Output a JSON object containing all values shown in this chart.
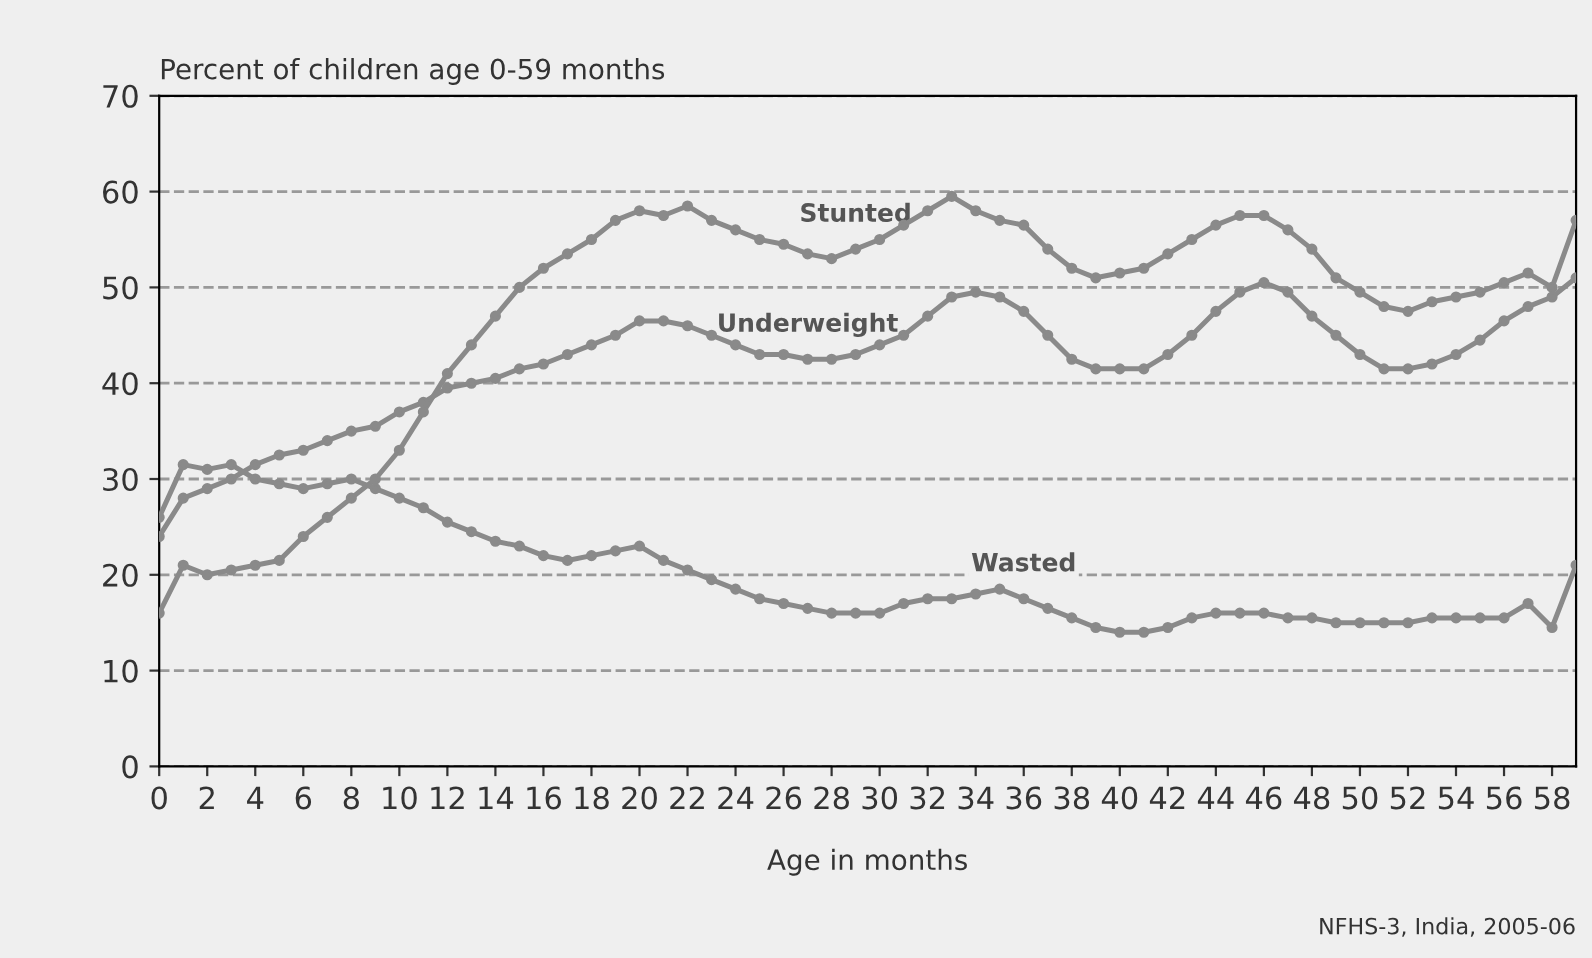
{
  "chart_data": {
    "type": "line",
    "title": "Percent of children age 0-59 months",
    "xlabel": "Age in months",
    "annotations": [
      "NFHS-3, India, 2005-06"
    ],
    "x": [
      0,
      1,
      2,
      3,
      4,
      5,
      6,
      7,
      8,
      9,
      10,
      11,
      12,
      13,
      14,
      15,
      16,
      17,
      18,
      19,
      20,
      21,
      22,
      23,
      24,
      25,
      26,
      27,
      28,
      29,
      30,
      31,
      32,
      33,
      34,
      35,
      36,
      37,
      38,
      39,
      40,
      41,
      42,
      43,
      44,
      45,
      46,
      47,
      48,
      49,
      50,
      51,
      52,
      53,
      54,
      55,
      56,
      57,
      58,
      59
    ],
    "series": [
      {
        "name": "Stunted",
        "color": "#8a8a8a",
        "values": [
          16,
          21,
          20,
          20.5,
          21,
          21.5,
          24,
          26,
          28,
          30,
          33,
          37,
          41,
          44,
          47,
          50,
          52,
          53.5,
          55,
          57,
          58,
          57.5,
          58.5,
          57,
          56,
          55,
          54.5,
          53.5,
          53,
          54,
          55,
          56.5,
          58,
          59.5,
          58,
          57,
          56.5,
          54,
          52,
          51,
          51.5,
          52,
          53.5,
          55,
          56.5,
          57.5,
          57.5,
          56,
          54,
          51,
          49.5,
          48,
          47.5,
          48.5,
          49,
          49.5,
          50.5,
          51.5,
          50,
          57
        ]
      },
      {
        "name": "Underweight",
        "color": "#8a8a8a",
        "values": [
          24,
          28,
          29,
          30,
          31.5,
          32.5,
          33,
          34,
          35,
          35.5,
          37,
          38,
          39.5,
          40,
          40.5,
          41.5,
          42,
          43,
          44,
          45,
          46.5,
          46.5,
          46,
          45,
          44,
          43,
          43,
          42.5,
          42.5,
          43,
          44,
          45,
          47,
          49,
          49.5,
          49,
          47.5,
          45,
          42.5,
          41.5,
          41.5,
          41.5,
          43,
          45,
          47.5,
          49.5,
          50.5,
          49.5,
          47,
          45,
          43,
          41.5,
          41.5,
          42,
          43,
          44.5,
          46.5,
          48,
          49,
          51
        ]
      },
      {
        "name": "Wasted",
        "color": "#8a8a8a",
        "values": [
          26,
          31.5,
          31,
          31.5,
          30,
          29.5,
          29,
          29.5,
          30,
          29,
          28,
          27,
          25.5,
          24.5,
          23.5,
          23,
          22,
          21.5,
          22,
          22.5,
          23,
          21.5,
          20.5,
          19.5,
          18.5,
          17.5,
          17,
          16.5,
          16,
          16,
          16,
          17,
          17.5,
          17.5,
          18,
          18.5,
          17.5,
          16.5,
          15.5,
          14.5,
          14,
          14,
          14.5,
          15.5,
          16,
          16,
          16,
          15.5,
          15.5,
          15,
          15,
          15,
          15,
          15.5,
          15.5,
          15.5,
          15.5,
          17,
          14.5,
          21
        ]
      }
    ],
    "xlim": [
      0,
      59
    ],
    "xticks": [
      0,
      2,
      4,
      6,
      8,
      10,
      12,
      14,
      16,
      18,
      20,
      22,
      24,
      26,
      28,
      30,
      32,
      34,
      36,
      38,
      40,
      42,
      44,
      46,
      48,
      50,
      52,
      54,
      56,
      58
    ],
    "ylim": [
      0,
      70
    ],
    "yticks": [
      0,
      10,
      20,
      30,
      40,
      50,
      60,
      70
    ],
    "grid": "y",
    "legend": false,
    "marker": "circle",
    "line_style": "solid"
  }
}
